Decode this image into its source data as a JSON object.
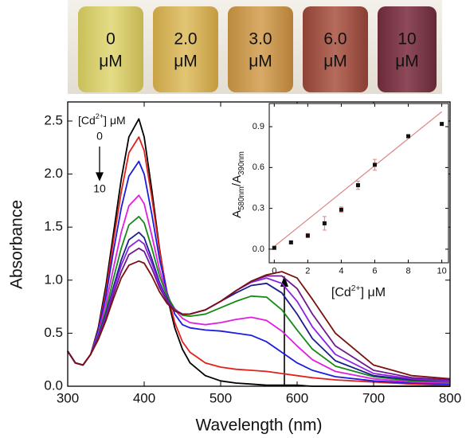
{
  "photo": {
    "vials": [
      {
        "amount": "0",
        "unit": "μM"
      },
      {
        "amount": "2.0",
        "unit": "μM"
      },
      {
        "amount": "3.0",
        "unit": "μM"
      },
      {
        "amount": "6.0",
        "unit": "μM"
      },
      {
        "amount": "10",
        "unit": "μM"
      }
    ]
  },
  "chart_data": [
    {
      "type": "line",
      "xlabel": "Wavelength (nm)",
      "ylabel": "Absorbance",
      "annotation": {
        "label": {
          "segments": [
            {
              "text": "[Cd"
            },
            {
              "text": "2+",
              "sup": true
            },
            {
              "text": "] μM"
            }
          ]
        },
        "from": "0",
        "to": "10"
      },
      "xlim": [
        300,
        800
      ],
      "ylim": [
        0,
        2.68
      ],
      "xticks": [
        300,
        400,
        500,
        600,
        700,
        800
      ],
      "yticks": [
        {
          "value": 0,
          "label": "0.0"
        },
        0.5,
        {
          "value": 1,
          "label": "1.0"
        },
        1.5,
        {
          "value": 2,
          "label": "2.0"
        },
        2.5
      ],
      "x": [
        300,
        310,
        320,
        330,
        340,
        350,
        360,
        370,
        380,
        393,
        400,
        410,
        420,
        430,
        440,
        450,
        460,
        480,
        500,
        520,
        540,
        560,
        580,
        600,
        620,
        650,
        700,
        750,
        800
      ],
      "series": [
        {
          "color": "#000000",
          "values": [
            0.33,
            0.22,
            0.2,
            0.3,
            0.55,
            0.95,
            1.45,
            1.95,
            2.35,
            2.52,
            2.35,
            1.85,
            1.3,
            0.85,
            0.55,
            0.35,
            0.22,
            0.1,
            0.05,
            0.03,
            0.02,
            0.01,
            0.01,
            0.01,
            0,
            0,
            0,
            0,
            0
          ]
        },
        {
          "color": "#e3211c",
          "values": [
            0.33,
            0.22,
            0.2,
            0.3,
            0.53,
            0.9,
            1.38,
            1.83,
            2.2,
            2.35,
            2.22,
            1.78,
            1.28,
            0.88,
            0.6,
            0.42,
            0.32,
            0.22,
            0.18,
            0.16,
            0.15,
            0.14,
            0.12,
            0.1,
            0.08,
            0.06,
            0.04,
            0.02,
            0.01
          ]
        },
        {
          "color": "#1c1ce0",
          "values": [
            0.33,
            0.22,
            0.2,
            0.3,
            0.52,
            0.85,
            1.28,
            1.68,
            1.98,
            2.12,
            2.0,
            1.62,
            1.2,
            0.88,
            0.68,
            0.58,
            0.55,
            0.53,
            0.52,
            0.5,
            0.48,
            0.42,
            0.32,
            0.22,
            0.15,
            0.09,
            0.05,
            0.03,
            0.02
          ]
        },
        {
          "color": "#e01ee0",
          "values": [
            0.33,
            0.22,
            0.2,
            0.3,
            0.5,
            0.78,
            1.12,
            1.45,
            1.7,
            1.8,
            1.72,
            1.42,
            1.1,
            0.86,
            0.72,
            0.64,
            0.6,
            0.58,
            0.6,
            0.63,
            0.65,
            0.62,
            0.52,
            0.38,
            0.25,
            0.14,
            0.07,
            0.04,
            0.03
          ]
        },
        {
          "color": "#148a14",
          "values": [
            0.33,
            0.22,
            0.2,
            0.3,
            0.48,
            0.72,
            1.02,
            1.3,
            1.52,
            1.6,
            1.54,
            1.3,
            1.04,
            0.85,
            0.73,
            0.67,
            0.66,
            0.68,
            0.74,
            0.8,
            0.85,
            0.84,
            0.72,
            0.53,
            0.35,
            0.19,
            0.09,
            0.05,
            0.04
          ]
        },
        {
          "color": "#1c1c8c",
          "values": [
            0.33,
            0.22,
            0.2,
            0.3,
            0.47,
            0.68,
            0.94,
            1.19,
            1.38,
            1.45,
            1.4,
            1.2,
            0.98,
            0.82,
            0.72,
            0.68,
            0.68,
            0.72,
            0.8,
            0.88,
            0.95,
            0.97,
            0.88,
            0.68,
            0.45,
            0.24,
            0.1,
            0.06,
            0.05
          ]
        },
        {
          "color": "#8a22e6",
          "values": [
            0.33,
            0.22,
            0.2,
            0.3,
            0.46,
            0.66,
            0.91,
            1.14,
            1.31,
            1.38,
            1.34,
            1.16,
            0.96,
            0.81,
            0.72,
            0.68,
            0.68,
            0.72,
            0.8,
            0.9,
            0.98,
            1.02,
            0.97,
            0.8,
            0.56,
            0.3,
            0.12,
            0.07,
            0.05
          ]
        },
        {
          "color": "#6e1a8e",
          "values": [
            0.33,
            0.22,
            0.2,
            0.3,
            0.45,
            0.64,
            0.87,
            1.08,
            1.24,
            1.3,
            1.27,
            1.11,
            0.93,
            0.8,
            0.71,
            0.68,
            0.68,
            0.72,
            0.8,
            0.9,
            0.99,
            1.04,
            1.04,
            0.92,
            0.68,
            0.38,
            0.15,
            0.08,
            0.06
          ]
        },
        {
          "color": "#7a1010",
          "values": [
            0.33,
            0.22,
            0.2,
            0.3,
            0.44,
            0.62,
            0.83,
            1.02,
            1.14,
            1.18,
            1.16,
            1.04,
            0.89,
            0.78,
            0.71,
            0.68,
            0.68,
            0.72,
            0.8,
            0.9,
            0.99,
            1.05,
            1.08,
            1.02,
            0.82,
            0.5,
            0.2,
            0.1,
            0.07
          ]
        }
      ]
    },
    {
      "type": "scatter",
      "xlabel": {
        "segments": [
          {
            "text": "[Cd"
          },
          {
            "text": "2+",
            "sup": true
          },
          {
            "text": "] μM"
          }
        ]
      },
      "ylabel": {
        "segments": [
          {
            "text": "A"
          },
          {
            "text": "580nm",
            "sub": true
          },
          {
            "text": "/A"
          },
          {
            "text": "390nm",
            "sub": true
          }
        ]
      },
      "xlim": [
        -0.3,
        10.4
      ],
      "ylim": [
        -0.1,
        1.07
      ],
      "xticks": [
        0,
        2,
        4,
        6,
        8,
        10
      ],
      "yticks": [
        {
          "value": 0,
          "label": "0.0"
        },
        0.3,
        0.6,
        0.9
      ],
      "x": [
        0,
        1,
        2,
        3,
        4,
        5,
        6,
        8,
        10
      ],
      "values": [
        0.01,
        0.05,
        0.1,
        0.19,
        0.29,
        0.47,
        0.62,
        0.83,
        0.92
      ],
      "errors": [
        0.01,
        0.01,
        0.015,
        0.05,
        0.02,
        0.03,
        0.04,
        0.01,
        0.01
      ],
      "color": "#111111",
      "fit": {
        "x": [
          0,
          10
        ],
        "values": [
          0.02,
          1.01
        ],
        "color": "#d98888"
      }
    }
  ]
}
